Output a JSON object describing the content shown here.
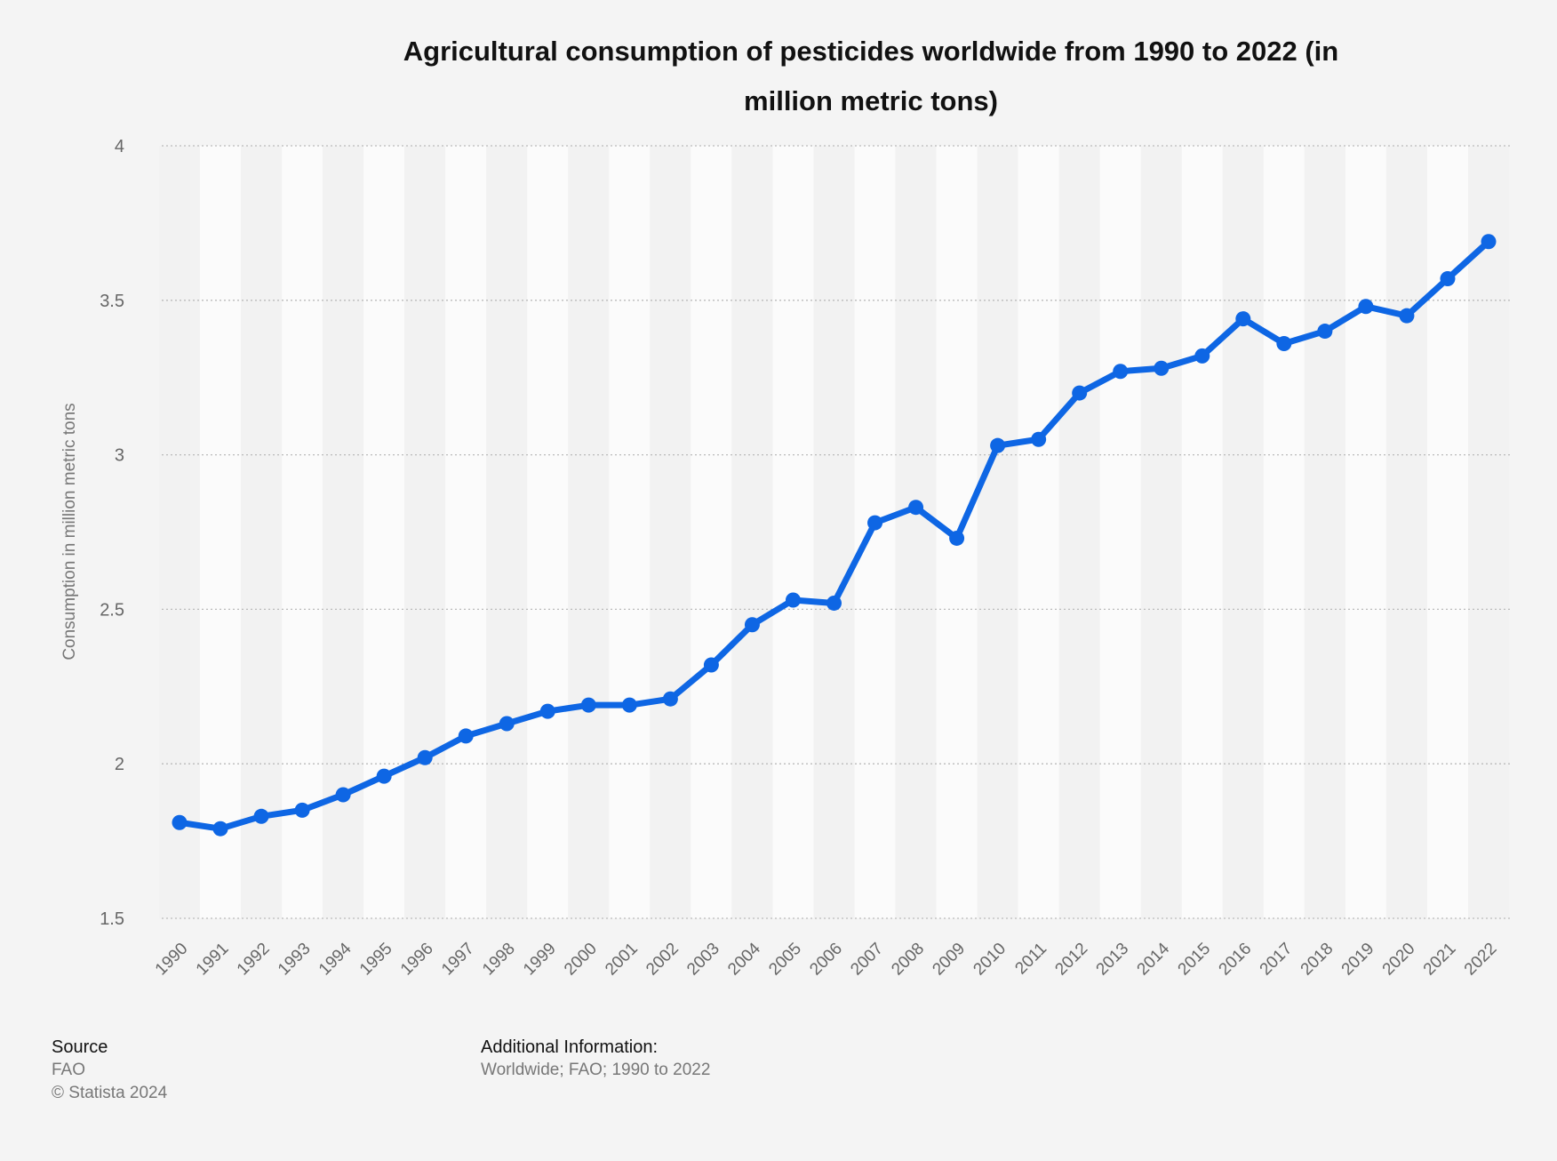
{
  "chart_data": {
    "type": "line",
    "title": "Agricultural consumption of pesticides worldwide from 1990 to 2022 (in million metric tons)",
    "title_lines": [
      "Agricultural consumption of pesticides worldwide from 1990 to 2022 (in",
      "million metric tons)"
    ],
    "xlabel": "",
    "ylabel": "Consumption in million metric tons",
    "ylim": [
      1.5,
      4
    ],
    "yticks": [
      1.5,
      2,
      2.5,
      3,
      3.5,
      4
    ],
    "ytick_labels": [
      "1.5",
      "2",
      "2.5",
      "3",
      "3.5",
      "4"
    ],
    "grid": true,
    "categories": [
      "1990",
      "1991",
      "1992",
      "1993",
      "1994",
      "1995",
      "1996",
      "1997",
      "1998",
      "1999",
      "2000",
      "2001",
      "2002",
      "2003",
      "2004",
      "2005",
      "2006",
      "2007",
      "2008",
      "2009",
      "2010",
      "2011",
      "2012",
      "2013",
      "2014",
      "2015",
      "2016",
      "2017",
      "2018",
      "2019",
      "2020",
      "2021",
      "2022"
    ],
    "series": [
      {
        "name": "Consumption",
        "color": "#0e66e4",
        "values": [
          1.81,
          1.79,
          1.83,
          1.85,
          1.9,
          1.96,
          2.02,
          2.09,
          2.13,
          2.17,
          2.19,
          2.19,
          2.21,
          2.32,
          2.45,
          2.53,
          2.52,
          2.78,
          2.83,
          2.73,
          3.03,
          3.05,
          3.2,
          3.27,
          3.28,
          3.32,
          3.44,
          3.36,
          3.4,
          3.48,
          3.45,
          3.57,
          3.69
        ]
      }
    ]
  },
  "footer": {
    "source_heading": "Source",
    "source": "FAO",
    "copyright": "© Statista 2024",
    "additional_heading": "Additional Information:",
    "additional": "Worldwide; FAO; 1990 to 2022"
  }
}
